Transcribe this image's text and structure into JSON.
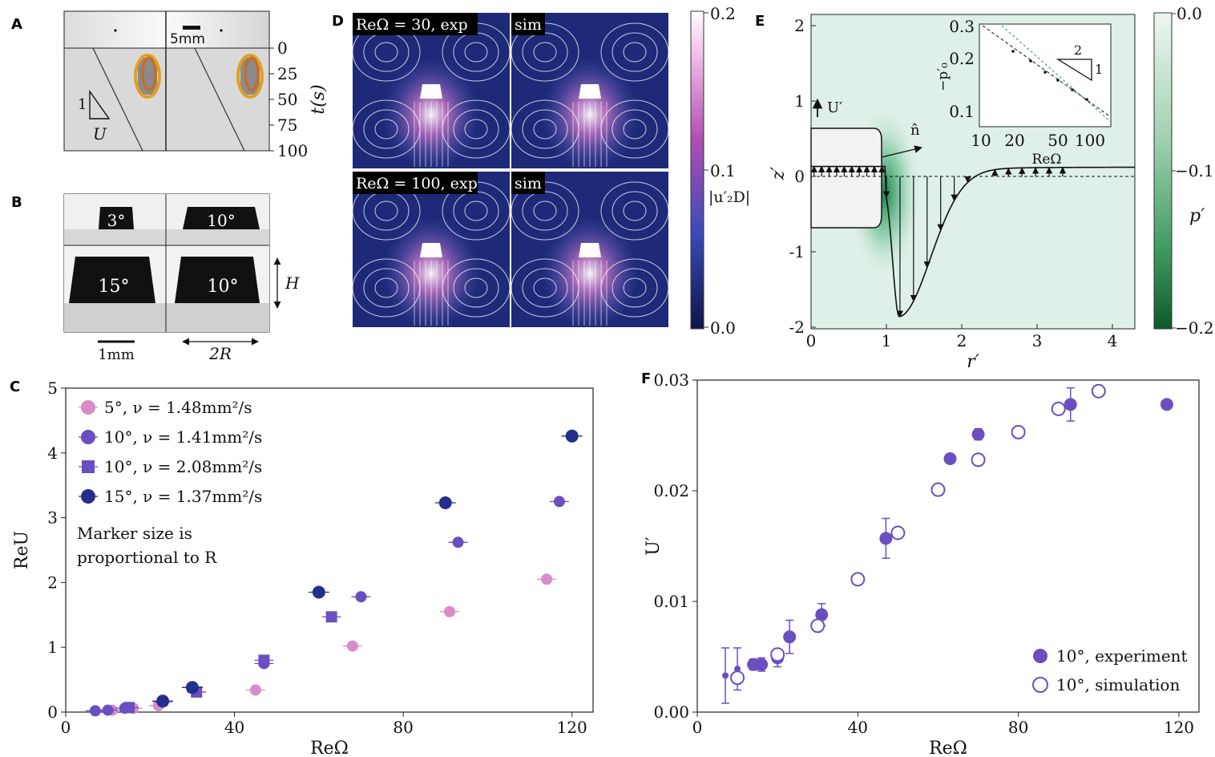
{
  "panels": {
    "A": {
      "label": "A",
      "scalebar": "5mm",
      "slope_label": "1",
      "slope_var": "U",
      "time_label": "t(s)",
      "time_ticks": [
        "0",
        "25",
        "50",
        "75",
        "100"
      ]
    },
    "B": {
      "label": "B",
      "angles": [
        "3°",
        "10°",
        "15°",
        "10°"
      ],
      "scalebar": "1mm",
      "dim_h": "H",
      "dim_2r": "2R"
    },
    "D": {
      "label": "D",
      "tags": [
        "ReΩ = 30, exp",
        "sim",
        "ReΩ = 100, exp",
        "sim"
      ],
      "colorbar_ticks": [
        "0.2",
        "0.1",
        "0.0"
      ],
      "colorbar_label": "|u′₂D|"
    },
    "E": {
      "label": "E",
      "xlabel": "r′",
      "ylabel": "z′",
      "xticks": [
        "0",
        "1",
        "2",
        "3",
        "4"
      ],
      "yticks": [
        "2",
        "1",
        "0",
        "-1",
        "-2"
      ],
      "velocity_label": "U′",
      "normal_label": "n̂",
      "colorbar_ticks": [
        "0.0",
        "−0.1",
        "−0.2"
      ],
      "colorbar_label": "p′",
      "inset": {
        "ylabel": "−p′₀",
        "xlabel": "ReΩ",
        "yticks": [
          "0.3",
          "0.2",
          "0.1"
        ],
        "xticks": [
          "10",
          "20",
          "50",
          "100"
        ],
        "slope_top": "2",
        "slope_side": "1"
      }
    }
  },
  "colors": {
    "light_pink": "#d98cc8",
    "purple": "#6a4fc0",
    "navy": "#242e8c",
    "dark_blue_field": "#1e2a78",
    "green": "#2e8b57"
  },
  "chart_data": [
    {
      "panel": "C",
      "label": "C",
      "type": "scatter",
      "xlabel": "ReΩ",
      "ylabel": "ReU",
      "xlim": [
        0,
        125
      ],
      "ylim": [
        0,
        5
      ],
      "xticks": [
        "0",
        "40",
        "80",
        "120"
      ],
      "yticks": [
        "0",
        "1",
        "2",
        "3",
        "4",
        "5"
      ],
      "legend_position": "top-left",
      "note": [
        "Marker size is",
        "proportional to R"
      ],
      "series": [
        {
          "name": "5°, ν = 1.48mm²/s",
          "marker": "circle",
          "color": "#d98cc8",
          "x": [
            11,
            16,
            22,
            45,
            68,
            91,
            114
          ],
          "y": [
            0.03,
            0.06,
            0.1,
            0.34,
            1.02,
            1.55,
            2.05
          ]
        },
        {
          "name": "10°, ν = 1.41mm²/s",
          "marker": "circle",
          "color": "#6a4fc0",
          "x": [
            7,
            10,
            14,
            23,
            30,
            47,
            70,
            93,
            117
          ],
          "y": [
            0.02,
            0.03,
            0.06,
            0.16,
            0.38,
            0.75,
            1.78,
            2.62,
            3.25
          ]
        },
        {
          "name": "10°, ν = 2.08mm²/s",
          "marker": "square",
          "color": "#6a4fc0",
          "x": [
            15,
            31,
            47,
            63
          ],
          "y": [
            0.07,
            0.31,
            0.8,
            1.47
          ]
        },
        {
          "name": "15°, ν = 1.37mm²/s",
          "marker": "circle",
          "color": "#242e8c",
          "x": [
            23,
            30,
            60,
            90,
            120
          ],
          "y": [
            0.17,
            0.38,
            1.85,
            3.23,
            4.26
          ]
        }
      ]
    },
    {
      "panel": "F",
      "label": "F",
      "type": "scatter",
      "xlabel": "ReΩ",
      "ylabel": "U′",
      "xlim": [
        0,
        125
      ],
      "ylim": [
        0,
        0.03
      ],
      "xticks": [
        "0",
        "40",
        "80",
        "120"
      ],
      "yticks": [
        "0.00",
        "0.01",
        "0.02",
        "0.03"
      ],
      "legend_position": "bottom-right",
      "series": [
        {
          "name": "10°, experiment",
          "marker": "filled",
          "x": [
            7,
            10,
            14,
            16,
            20,
            23,
            31,
            47,
            63,
            70,
            93,
            117
          ],
          "y": [
            0.0033,
            0.0039,
            0.0043,
            0.0043,
            0.0049,
            0.0068,
            0.0088,
            0.0157,
            0.0229,
            0.0251,
            0.0278,
            0.0278
          ],
          "err": [
            0.0025,
            0.0019,
            0.0005,
            0.0006,
            0.0008,
            0.0015,
            0.001,
            0.0018,
            0.0,
            0.0005,
            0.0015,
            0.0
          ]
        },
        {
          "name": "10°, simulation",
          "marker": "open",
          "x": [
            10,
            20,
            30,
            40,
            50,
            60,
            70,
            80,
            90,
            100
          ],
          "y": [
            0.0031,
            0.0052,
            0.0078,
            0.012,
            0.0162,
            0.0201,
            0.0228,
            0.0253,
            0.0274,
            0.029
          ]
        }
      ]
    }
  ]
}
